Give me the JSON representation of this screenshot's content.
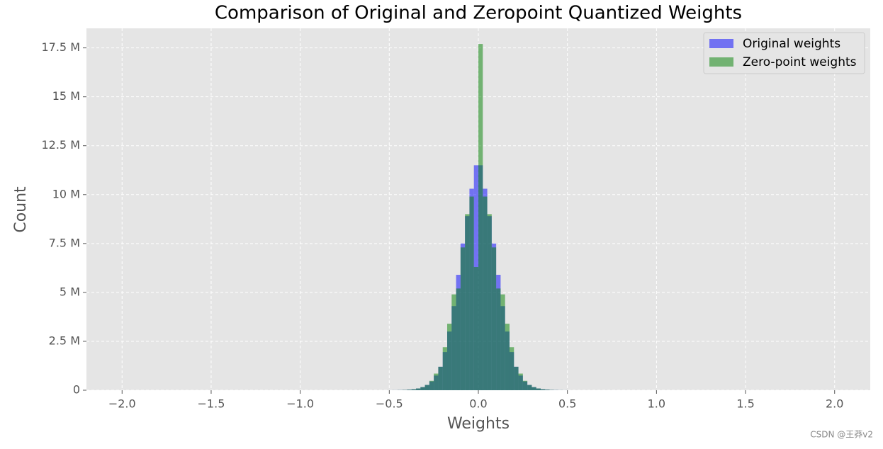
{
  "chart_data": {
    "type": "histogram",
    "title": "Comparison of Original and Zeropoint Quantized Weights",
    "x_label": "Weights",
    "y_label": "Count",
    "bins": [
      -0.5,
      -0.475,
      -0.45,
      -0.425,
      -0.4,
      -0.375,
      -0.35,
      -0.325,
      -0.3,
      -0.275,
      -0.25,
      -0.225,
      -0.2,
      -0.175,
      -0.15,
      -0.125,
      -0.1,
      -0.075,
      -0.05,
      -0.025,
      0,
      0.025,
      0.05,
      0.075,
      0.1,
      0.125,
      0.15,
      0.175,
      0.2,
      0.225,
      0.25,
      0.275,
      0.3,
      0.325,
      0.35,
      0.375,
      0.4,
      0.425,
      0.45,
      0.475,
      0.5
    ],
    "series": [
      {
        "name": "Original weights",
        "color": "#0000ff",
        "opacity": 0.5,
        "values": [
          2000,
          4000,
          8000,
          15000,
          30000,
          50000,
          90000,
          160000,
          270000,
          450000,
          750000,
          1200000,
          1950000,
          3000000,
          4300000,
          5900000,
          7500000,
          8900000,
          10300000,
          11500000,
          11500000,
          10300000,
          8900000,
          7500000,
          5900000,
          4300000,
          3000000,
          1950000,
          1200000,
          750000,
          450000,
          270000,
          160000,
          90000,
          50000,
          30000,
          15000,
          8000,
          4000,
          2000
        ]
      },
      {
        "name": "Zero-point weights",
        "color": "#008000",
        "opacity": 0.5,
        "values": [
          2000,
          4000,
          8000,
          15000,
          30000,
          50000,
          90000,
          160000,
          270000,
          480000,
          850000,
          1200000,
          2200000,
          3400000,
          4900000,
          5200000,
          7300000,
          9000000,
          9900000,
          6300000,
          17700000,
          9900000,
          9000000,
          7300000,
          5200000,
          4900000,
          3400000,
          2200000,
          1200000,
          850000,
          480000,
          270000,
          160000,
          90000,
          50000,
          30000,
          15000,
          8000,
          4000,
          2000
        ]
      }
    ],
    "xlim": [
      -2.2,
      2.2
    ],
    "xticks": [
      {
        "value": -2,
        "label": "−2.0"
      },
      {
        "value": -1.5,
        "label": "−1.5"
      },
      {
        "value": -1,
        "label": "−1.0"
      },
      {
        "value": -0.5,
        "label": "−0.5"
      },
      {
        "value": 0,
        "label": "0.0"
      },
      {
        "value": 0.5,
        "label": "0.5"
      },
      {
        "value": 1,
        "label": "1.0"
      },
      {
        "value": 1.5,
        "label": "1.5"
      },
      {
        "value": 2,
        "label": "2.0"
      }
    ],
    "ylim": [
      0,
      18500000
    ],
    "yticks": [
      0,
      {
        "value": 2500000,
        "label": "2.5 M"
      },
      {
        "value": 5000000,
        "label": "5 M"
      },
      {
        "value": 7500000,
        "label": "7.5 M"
      },
      {
        "value": 10000000,
        "label": "10 M"
      },
      {
        "value": 12500000,
        "label": "12.5 M"
      },
      {
        "value": 15000000,
        "label": "15 M"
      },
      {
        "value": 17500000,
        "label": "17.5 M"
      }
    ],
    "grid": true,
    "legend": "upper right"
  },
  "watermark": "CSDN @王莽v2"
}
